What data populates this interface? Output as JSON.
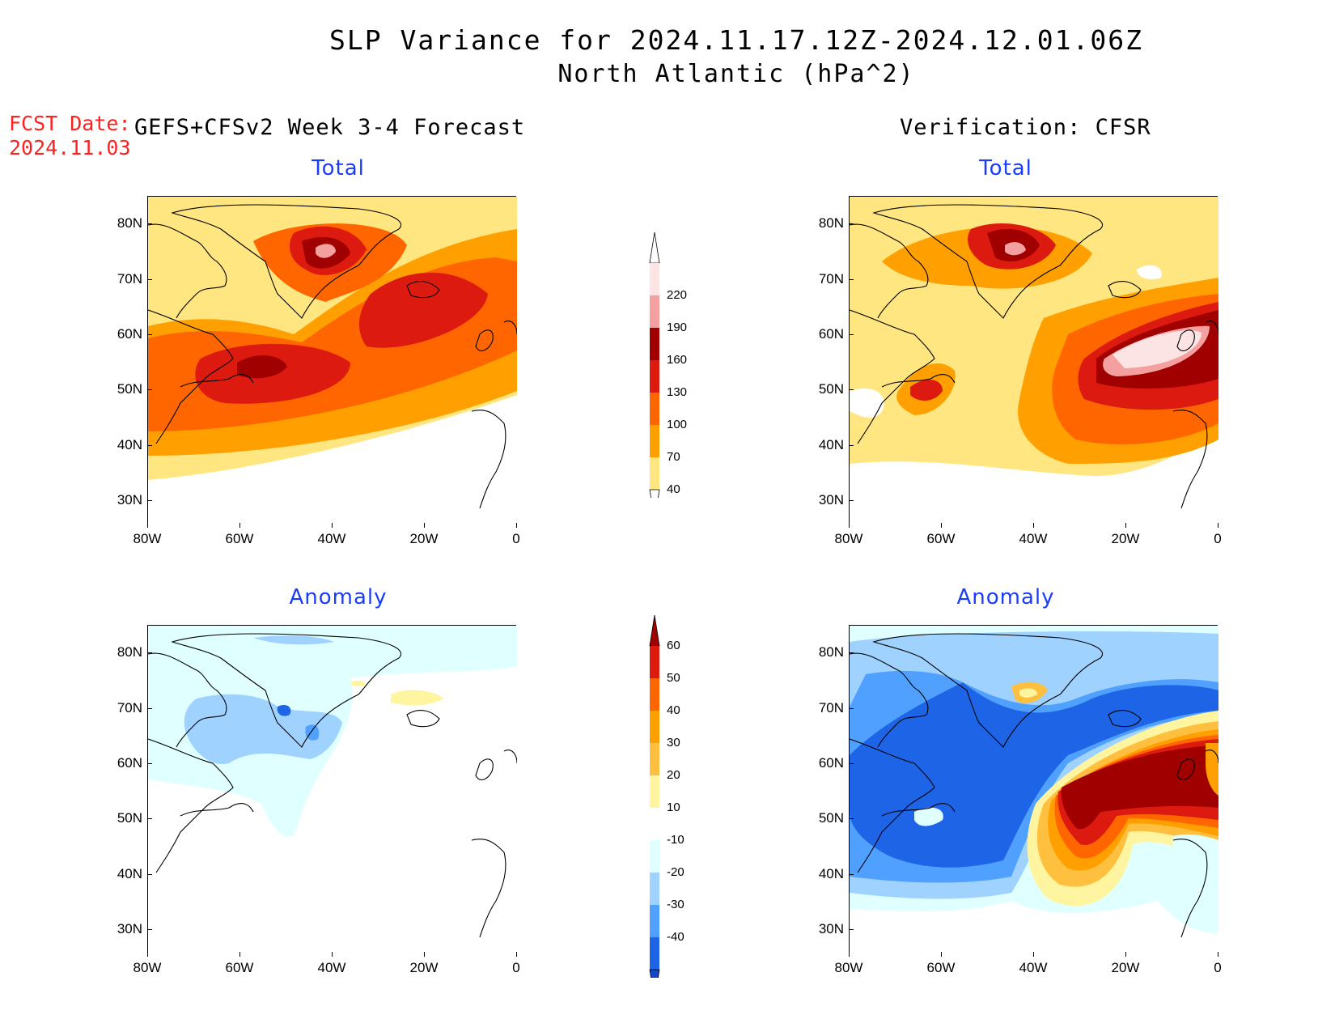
{
  "header": {
    "title_line1": "SLP Variance for 2024.11.17.12Z-2024.12.01.06Z",
    "title_line2": "North Atlantic (hPa^2)",
    "fcst_label": "FCST Date:",
    "fcst_date": "2024.11.03",
    "left_column_title": "GEFS+CFSv2 Week 3-4 Forecast",
    "right_column_title": "Verification: CFSR"
  },
  "panels": {
    "fc_total": {
      "title": "Total"
    },
    "vf_total": {
      "title": "Total"
    },
    "fc_anom": {
      "title": "Anomaly"
    },
    "vf_anom": {
      "title": "Anomaly"
    }
  },
  "axes": {
    "lon_labels": [
      "80W",
      "60W",
      "40W",
      "20W",
      "0"
    ],
    "lat_labels": [
      "80N",
      "70N",
      "60N",
      "50N",
      "40N",
      "30N"
    ],
    "lon_range": [
      -80,
      0
    ],
    "lat_range": [
      25,
      85
    ]
  },
  "colorbars": {
    "total": {
      "levels": [
        "220",
        "190",
        "160",
        "130",
        "100",
        "70",
        "40"
      ],
      "colors": [
        "#fde4e4",
        "#f4a0a0",
        "#a00000",
        "#dd1a10",
        "#ff6600",
        "#ffa000",
        "#ffe680"
      ]
    },
    "anomaly": {
      "levels": [
        "60",
        "50",
        "40",
        "30",
        "20",
        "10",
        "-10",
        "-20",
        "-30",
        "-40"
      ],
      "colors_pos": [
        "#a00000",
        "#dd1a10",
        "#ff6600",
        "#ffa000",
        "#ffc040",
        "#fff5a0"
      ],
      "color_zero": "#ffffff",
      "colors_neg": [
        "#e0ffff",
        "#a0d2ff",
        "#50a0ff",
        "#1e64e6",
        "#1446c8"
      ]
    }
  }
}
